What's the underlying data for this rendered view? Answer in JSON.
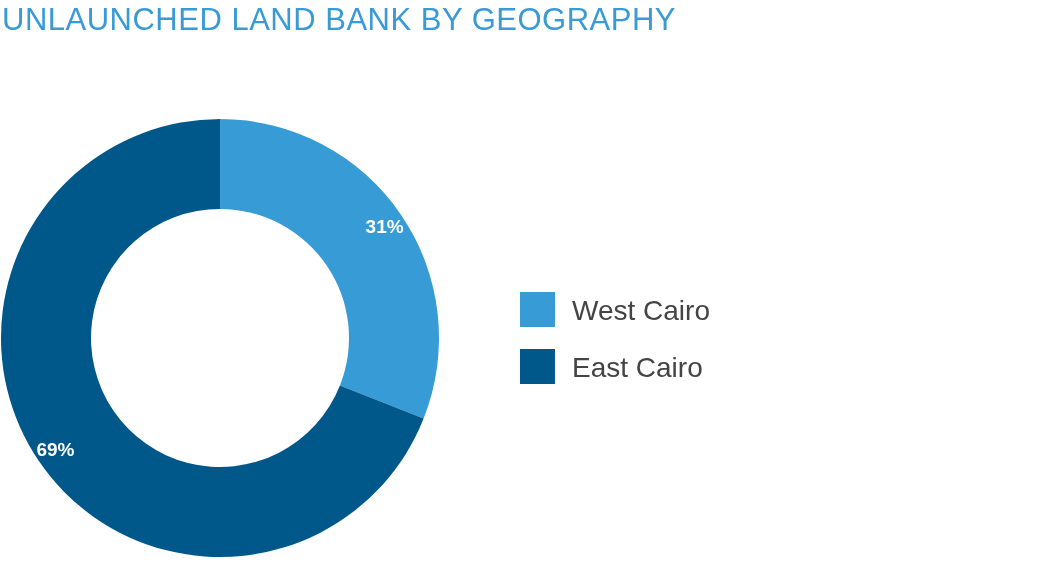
{
  "chart_data": {
    "type": "donut",
    "title": "UNLAUNCHED LAND BANK BY GEOGRAPHY",
    "categories": [
      "West Cairo",
      "East Cairo"
    ],
    "values": [
      31,
      69
    ],
    "colors": [
      "#379bd6",
      "#00578a"
    ],
    "value_labels": [
      "31%",
      "69%"
    ],
    "legend": "right"
  }
}
